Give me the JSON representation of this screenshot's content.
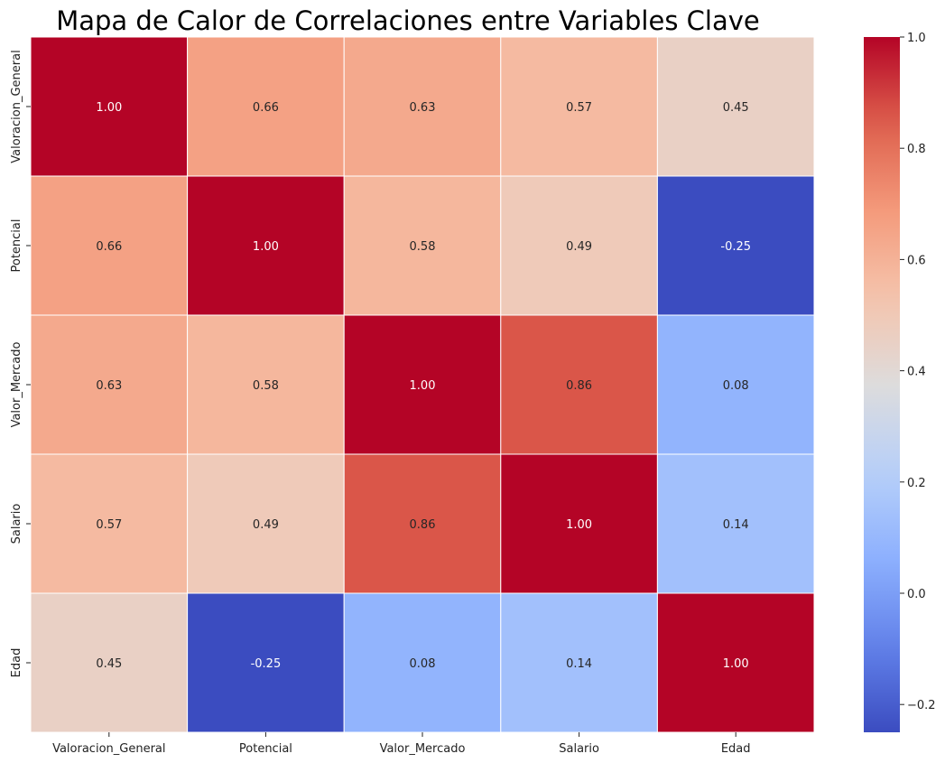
{
  "chart_data": {
    "type": "heatmap",
    "title": "Mapa de Calor de Correlaciones entre Variables Clave",
    "x_labels": [
      "Valoracion_General",
      "Potencial",
      "Valor_Mercado",
      "Salario",
      "Edad"
    ],
    "y_labels": [
      "Valoracion_General",
      "Potencial",
      "Valor_Mercado",
      "Salario",
      "Edad"
    ],
    "values": [
      [
        1.0,
        0.66,
        0.63,
        0.57,
        0.45
      ],
      [
        0.66,
        1.0,
        0.58,
        0.49,
        -0.25
      ],
      [
        0.63,
        0.58,
        1.0,
        0.86,
        0.08
      ],
      [
        0.57,
        0.49,
        0.86,
        1.0,
        0.14
      ],
      [
        0.45,
        -0.25,
        0.08,
        0.14,
        1.0
      ]
    ],
    "value_labels": [
      [
        "1.00",
        "0.66",
        "0.63",
        "0.57",
        "0.45"
      ],
      [
        "0.66",
        "1.00",
        "0.58",
        "0.49",
        "-0.25"
      ],
      [
        "0.63",
        "0.58",
        "1.00",
        "0.86",
        "0.08"
      ],
      [
        "0.57",
        "0.49",
        "0.86",
        "1.00",
        "0.14"
      ],
      [
        "0.45",
        "-0.25",
        "0.08",
        "0.14",
        "1.00"
      ]
    ],
    "colormap": "coolwarm",
    "vmin": -0.25,
    "vmax": 1.0,
    "colorbar": {
      "ticks": [
        -0.2,
        0.0,
        0.2,
        0.4,
        0.6,
        0.8,
        1.0
      ],
      "tick_labels": [
        "−0.2",
        "0.0",
        "0.2",
        "0.4",
        "0.6",
        "0.8",
        "1.0"
      ],
      "placement": "right"
    }
  }
}
